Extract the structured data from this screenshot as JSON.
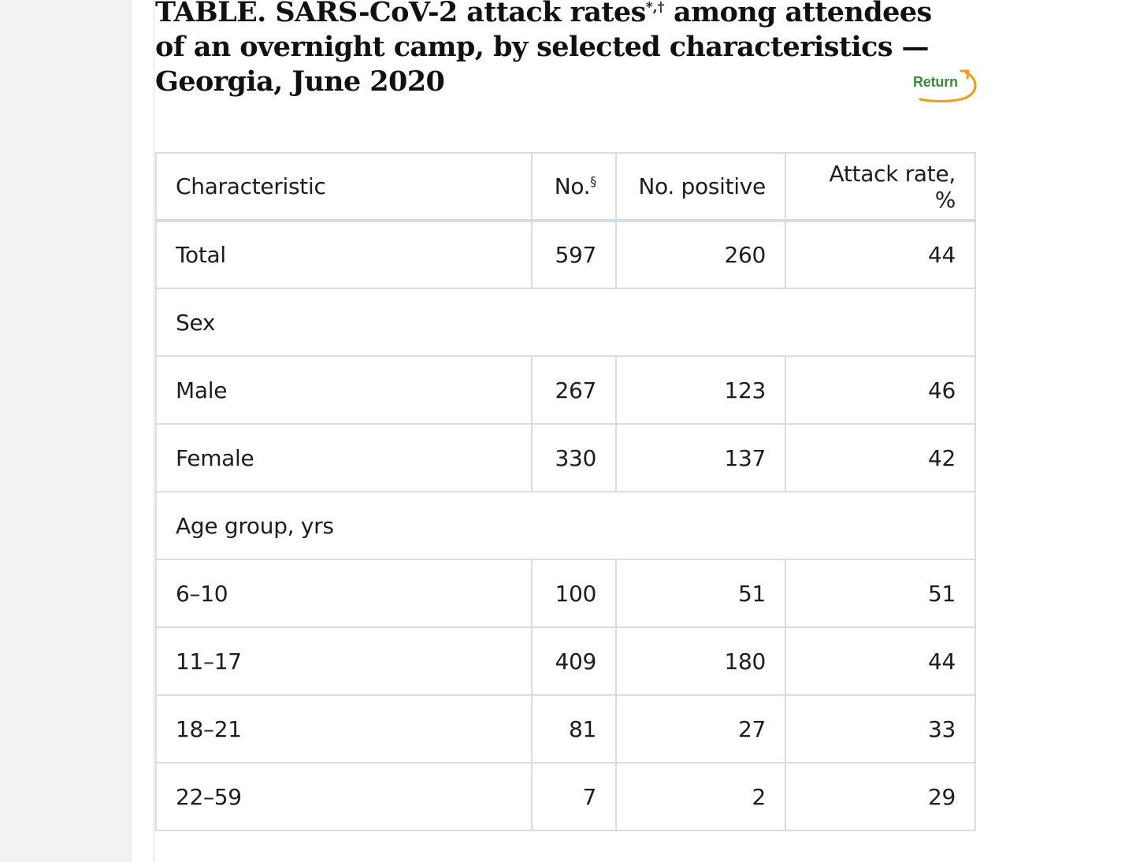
{
  "title": {
    "text": "TABLE. SARS-CoV-2 attack rates",
    "footnote_marks": "*,†",
    "text_rest": " among attendees of an overnight camp, by selected characteristics — Georgia, June 2020"
  },
  "return_link": {
    "label": "Return",
    "color": "#3a8d3a",
    "arrow_color": "#f39a1e"
  },
  "table": {
    "headers": {
      "characteristic": "Characteristic",
      "number": "No.",
      "number_mark": "§",
      "positive": "No. positive",
      "attack_rate": "Attack rate, %"
    },
    "total": {
      "label": "Total",
      "number": "597",
      "positive": "260",
      "attack_rate": "44"
    },
    "sections": [
      {
        "heading": "Sex",
        "rows": [
          {
            "label": "Male",
            "number": "267",
            "positive": "123",
            "attack_rate": "46"
          },
          {
            "label": "Female",
            "number": "330",
            "positive": "137",
            "attack_rate": "42"
          }
        ]
      },
      {
        "heading": "Age group, yrs",
        "rows": [
          {
            "label": "6–10",
            "number": "100",
            "positive": "51",
            "attack_rate": "51"
          },
          {
            "label": "11–17",
            "number": "409",
            "positive": "180",
            "attack_rate": "44"
          },
          {
            "label": "18–21",
            "number": "81",
            "positive": "27",
            "attack_rate": "33"
          },
          {
            "label": "22–59",
            "number": "7",
            "positive": "2",
            "attack_rate": "29"
          }
        ]
      }
    ]
  }
}
